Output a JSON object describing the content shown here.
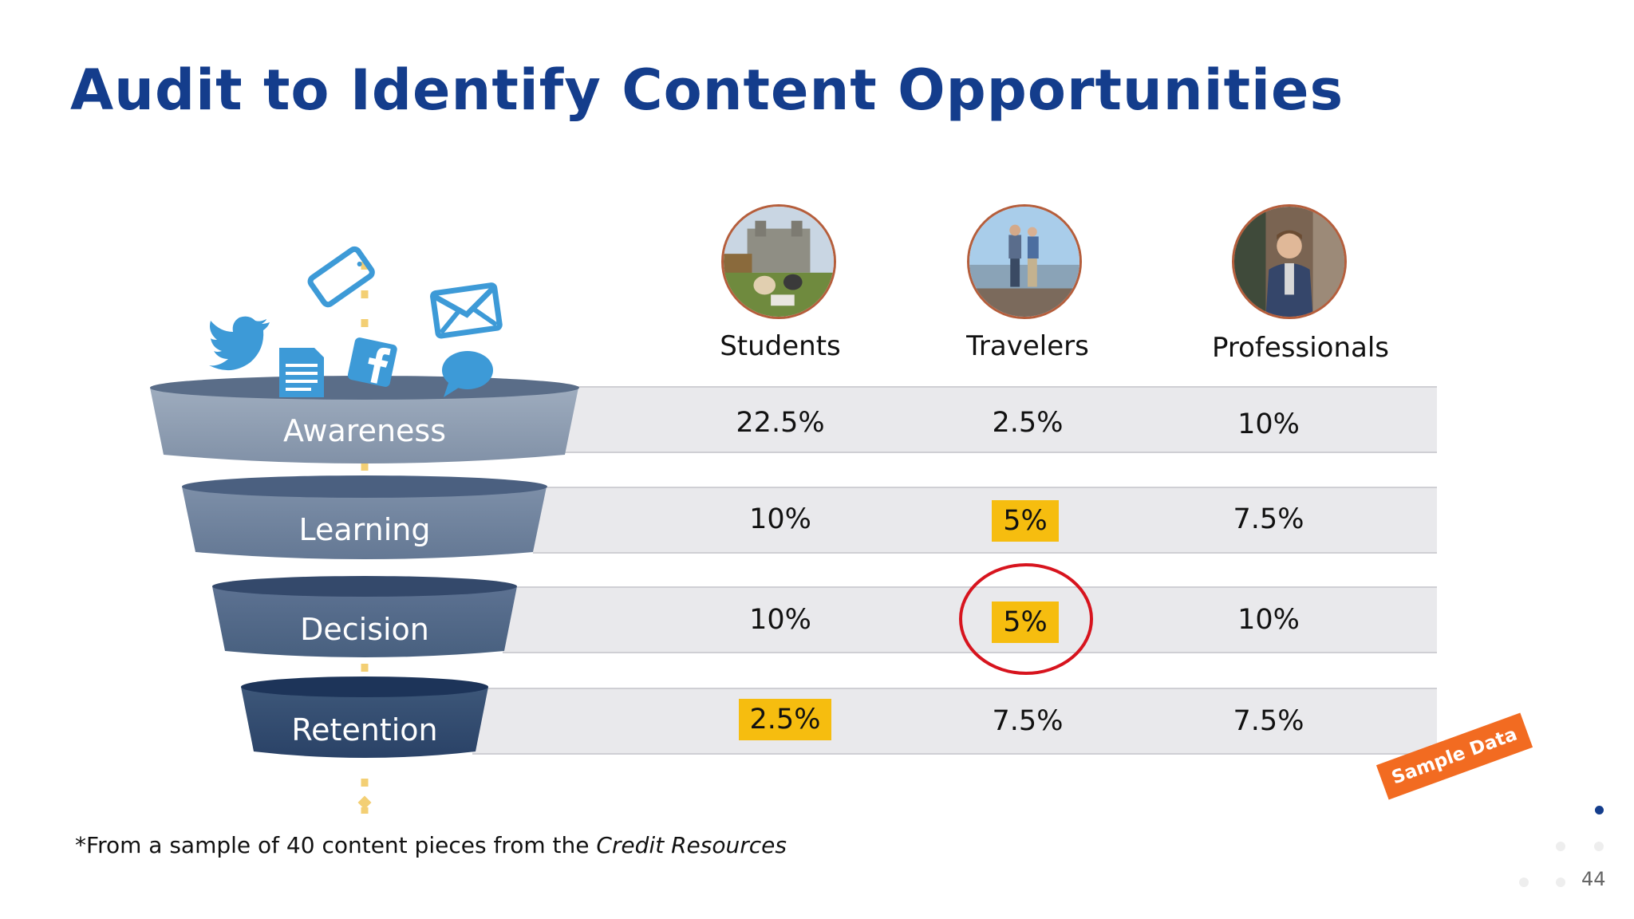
{
  "slide": {
    "title": "Audit to Identify Content Opportunities",
    "footnote_prefix": "*From a sample of 40 content pieces from the ",
    "footnote_source": "Credit Resources",
    "sample_tag": "Sample Data",
    "page_number": "44"
  },
  "personas": [
    {
      "label": "Students",
      "icon": "students-photo"
    },
    {
      "label": "Travelers",
      "icon": "travelers-photo"
    },
    {
      "label": "Professionals",
      "icon": "professional-photo"
    }
  ],
  "stages": [
    {
      "label": "Awareness",
      "values": [
        "22.5%",
        "2.5%",
        "10%"
      ]
    },
    {
      "label": "Learning",
      "values": [
        "10%",
        "5%",
        "7.5%"
      ]
    },
    {
      "label": "Decision",
      "values": [
        "10%",
        "5%",
        "10%"
      ]
    },
    {
      "label": "Retention",
      "values": [
        "2.5%",
        "7.5%",
        "7.5%"
      ]
    }
  ],
  "highlights": [
    "Learning/Travelers",
    "Decision/Travelers",
    "Retention/Students"
  ],
  "circled": "Decision/Travelers",
  "funnel_icons": [
    "twitter-icon",
    "phone-icon",
    "email-icon",
    "document-icon",
    "facebook-icon",
    "chat-bubble-icon"
  ],
  "colors": {
    "title": "#143d8c",
    "highlight": "#f6bd0f",
    "circle": "#d7141e",
    "sample_tag": "#f26b21",
    "funnel_top": "#8d9db2",
    "funnel_bottom": "#26406a",
    "social_icons": "#3d9ad7"
  }
}
